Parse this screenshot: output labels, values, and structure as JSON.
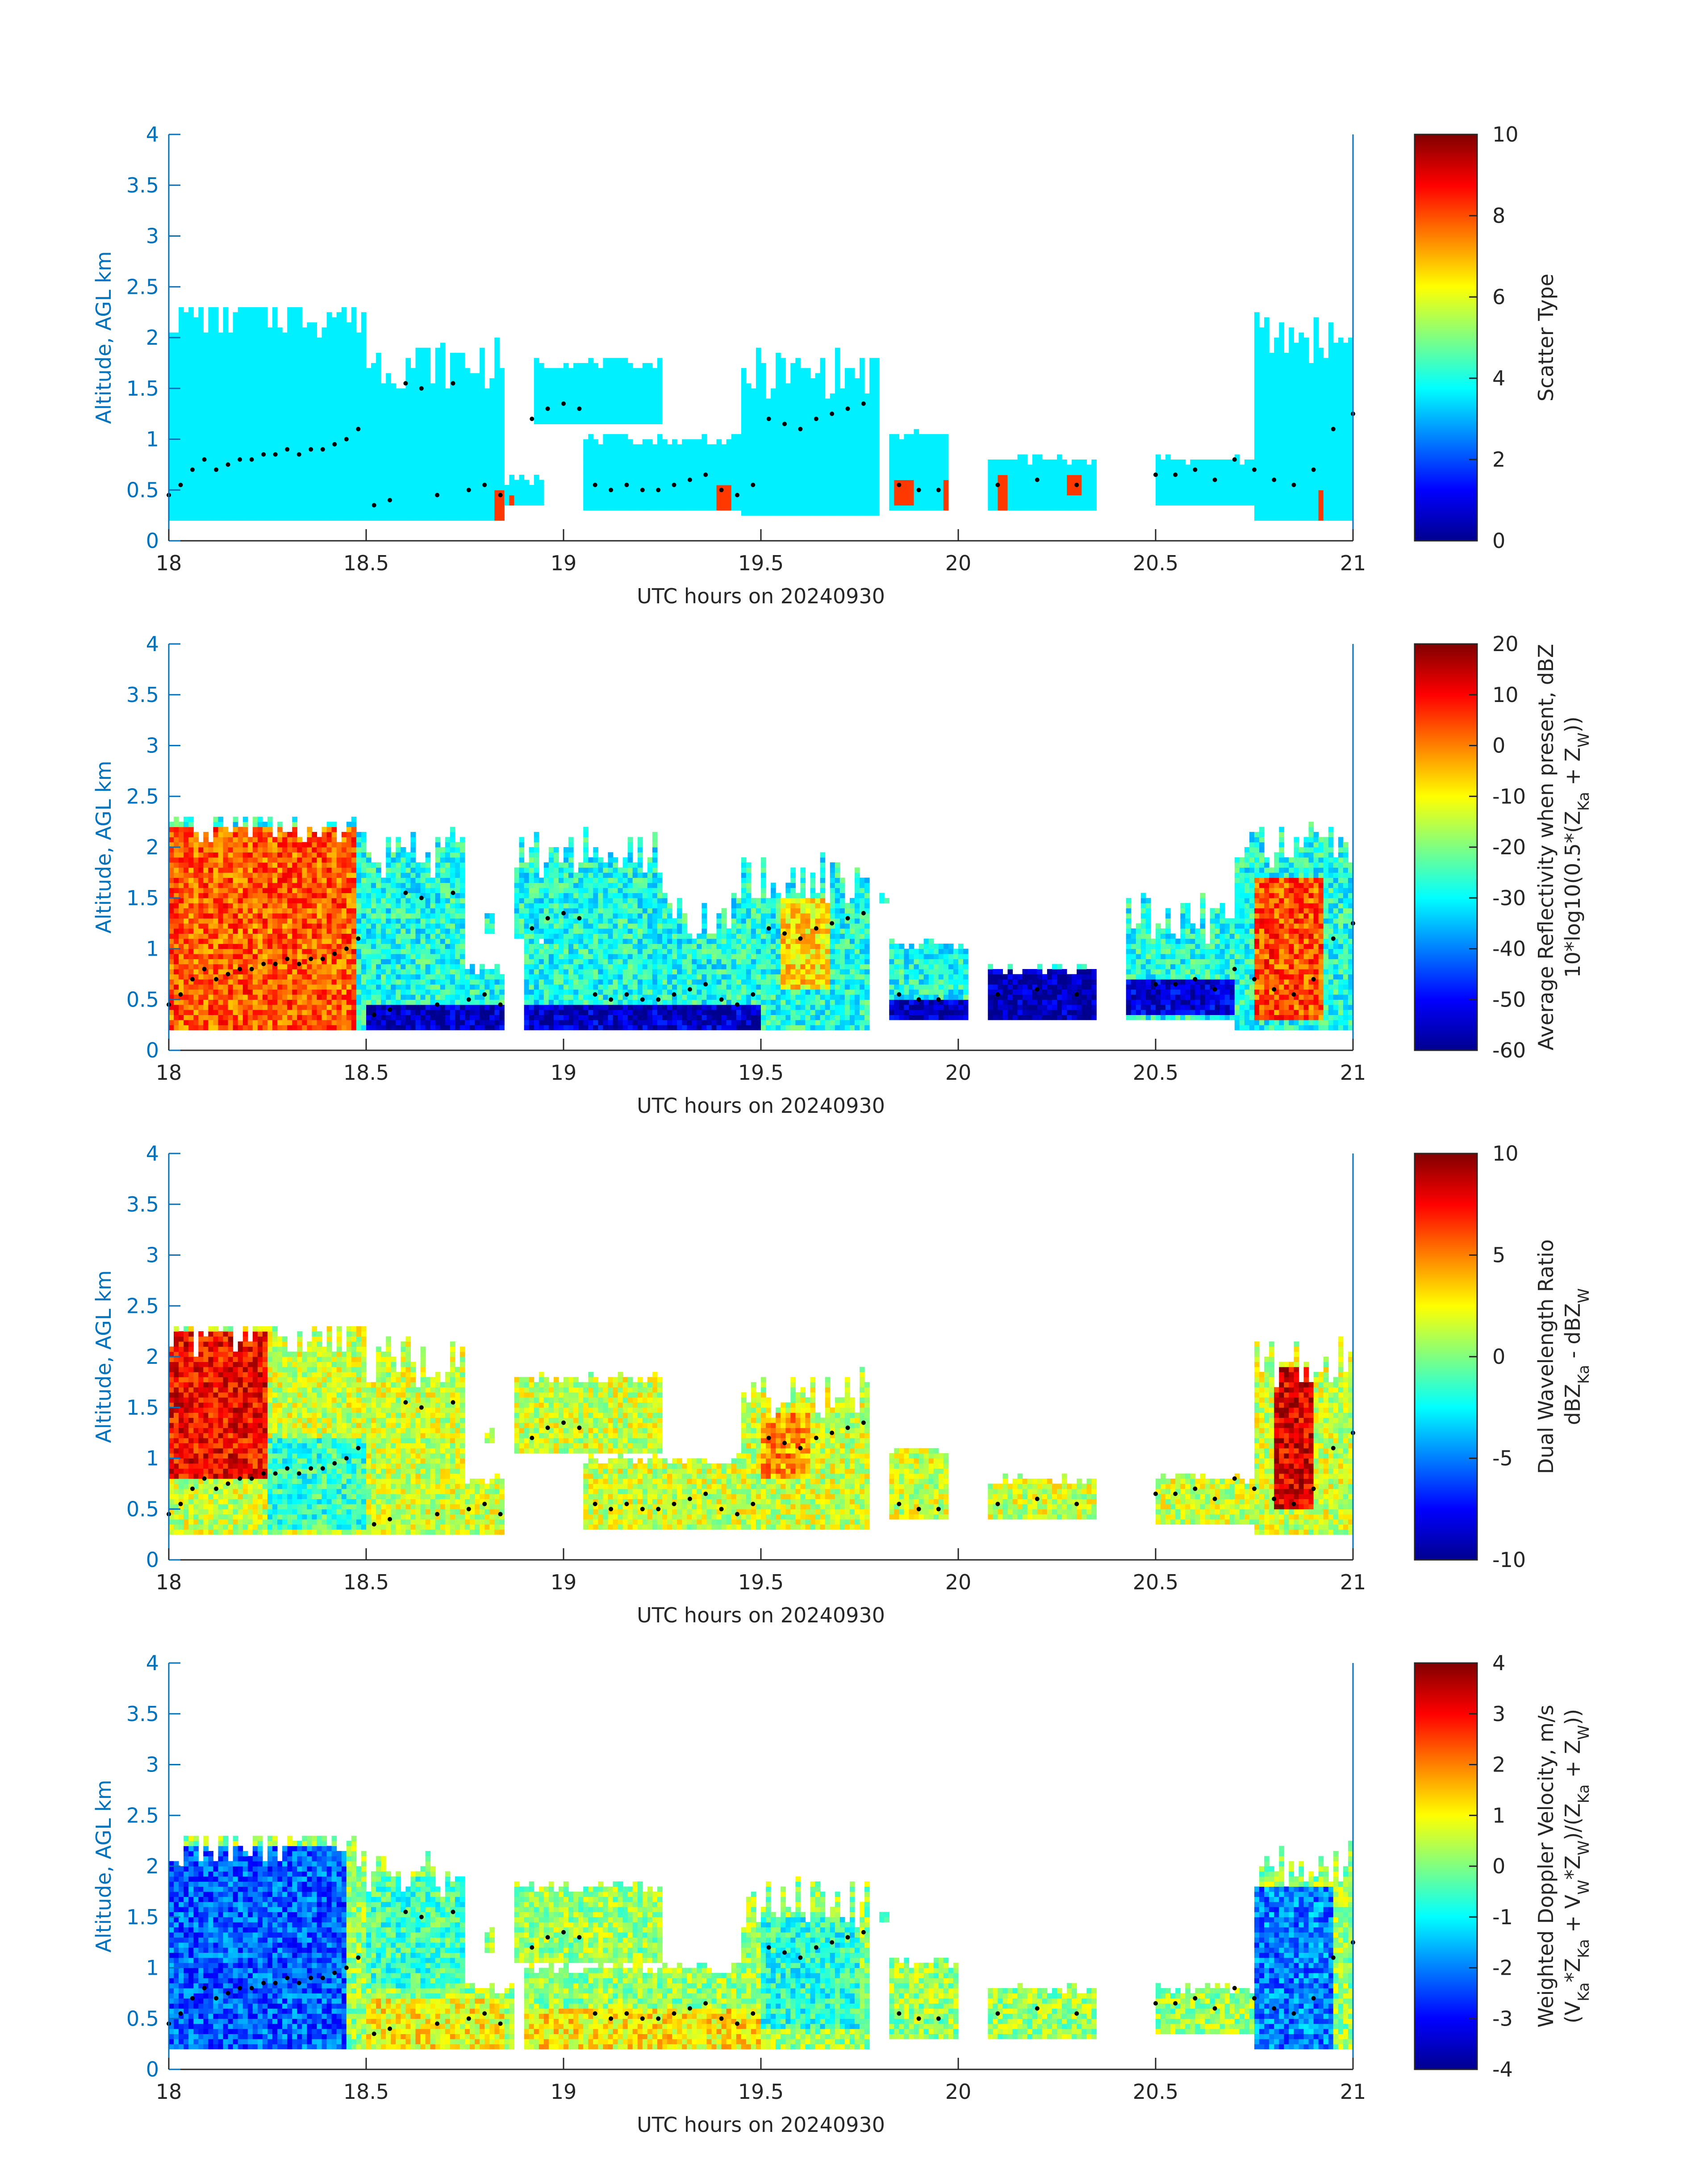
{
  "figure": {
    "xlabel": "UTC hours on 20240930",
    "ylabel": "Altitude, AGL km",
    "xticks": [
      18,
      18.5,
      19,
      19.5,
      20,
      20.5,
      21
    ],
    "yticks": [
      0,
      0.5,
      1,
      1.5,
      2,
      2.5,
      3,
      3.5,
      4
    ],
    "xlim": [
      18,
      21
    ],
    "ylim": [
      0,
      4
    ],
    "colormap": "jet",
    "axis_color": "#0072bd",
    "marker_color": "#000000"
  },
  "chart_data": [
    {
      "type": "heatmap",
      "xlabel": "UTC hours on 20240930",
      "ylabel": "Altitude, AGL km",
      "colorbar_label_lines": [
        "Scatter Type"
      ],
      "clim": [
        0,
        10
      ],
      "colorbar_ticks": [
        0,
        2,
        4,
        6,
        8,
        10
      ],
      "mask_segments": [
        [
          18.0,
          18.5,
          0.2,
          2.25
        ],
        [
          18.5,
          18.85,
          0.2,
          1.75
        ],
        [
          18.85,
          18.95,
          0.35,
          0.6
        ],
        [
          18.93,
          19.25,
          1.15,
          1.75
        ],
        [
          19.05,
          19.45,
          0.3,
          1.0
        ],
        [
          19.45,
          19.8,
          0.25,
          1.65
        ],
        [
          19.82,
          19.98,
          0.3,
          1.05
        ],
        [
          20.07,
          20.35,
          0.3,
          0.8
        ],
        [
          20.5,
          20.75,
          0.35,
          0.8
        ],
        [
          20.75,
          21.0,
          0.2,
          2.0
        ]
      ],
      "fill_value": 3.6,
      "highlights": [
        {
          "x": [
            18.83,
            18.85
          ],
          "y": [
            0.2,
            0.5
          ],
          "value": 8.2
        },
        {
          "x": [
            18.86,
            18.88
          ],
          "y": [
            0.25,
            0.45
          ],
          "value": 8.2
        },
        {
          "x": [
            19.39,
            19.42
          ],
          "y": [
            0.25,
            0.55
          ],
          "value": 8.2
        },
        {
          "x": [
            19.84,
            19.89
          ],
          "y": [
            0.35,
            0.6
          ],
          "value": 8.2
        },
        {
          "x": [
            19.96,
            19.99
          ],
          "y": [
            0.3,
            0.6
          ],
          "value": 8.2
        },
        {
          "x": [
            20.1,
            20.12
          ],
          "y": [
            0.3,
            0.65
          ],
          "value": 8.2
        },
        {
          "x": [
            20.28,
            20.31
          ],
          "y": [
            0.45,
            0.65
          ],
          "value": 8.2
        },
        {
          "x": [
            20.91,
            20.93
          ],
          "y": [
            0.2,
            0.5
          ],
          "value": 8.2
        }
      ],
      "markers": {
        "x": [
          18.0,
          18.03,
          18.06,
          18.09,
          18.12,
          18.15,
          18.18,
          18.21,
          18.24,
          18.27,
          18.3,
          18.33,
          18.36,
          18.39,
          18.42,
          18.45,
          18.48,
          18.52,
          18.56,
          18.6,
          18.64,
          18.68,
          18.72,
          18.76,
          18.8,
          18.84,
          18.92,
          18.96,
          19.0,
          19.04,
          19.08,
          19.12,
          19.16,
          19.2,
          19.24,
          19.28,
          19.32,
          19.36,
          19.4,
          19.44,
          19.48,
          19.52,
          19.56,
          19.6,
          19.64,
          19.68,
          19.72,
          19.76,
          19.85,
          19.9,
          19.95,
          20.1,
          20.2,
          20.3,
          20.5,
          20.55,
          20.6,
          20.65,
          20.7,
          20.75,
          20.8,
          20.85,
          20.9,
          20.95,
          21.0
        ],
        "y": [
          0.45,
          0.55,
          0.7,
          0.8,
          0.7,
          0.75,
          0.8,
          0.8,
          0.85,
          0.85,
          0.9,
          0.85,
          0.9,
          0.9,
          0.95,
          1.0,
          1.1,
          0.35,
          0.4,
          1.55,
          1.5,
          0.45,
          1.55,
          0.5,
          0.55,
          0.45,
          1.2,
          1.3,
          1.35,
          1.3,
          0.55,
          0.5,
          0.55,
          0.5,
          0.5,
          0.55,
          0.6,
          0.65,
          0.5,
          0.45,
          0.55,
          1.2,
          1.15,
          1.1,
          1.2,
          1.25,
          1.3,
          1.35,
          0.55,
          0.5,
          0.5,
          0.55,
          0.6,
          0.55,
          0.65,
          0.65,
          0.7,
          0.6,
          0.8,
          0.7,
          0.6,
          0.55,
          0.7,
          1.1,
          1.25
        ]
      }
    },
    {
      "type": "heatmap",
      "xlabel": "UTC hours on 20240930",
      "ylabel": "Altitude, AGL km",
      "colorbar_label_lines": [
        "Average Reflectivity when present, dBZ",
        "10*log10(0.5*(Z<sub>Ka</sub> + Z<sub>W</sub>))"
      ],
      "clim": [
        -60,
        20
      ],
      "colorbar_ticks": [
        -60,
        -50,
        -40,
        -30,
        -20,
        -10,
        0,
        10,
        20
      ],
      "mask_segments": [
        [
          18.0,
          18.5,
          0.2,
          2.25
        ],
        [
          18.5,
          18.75,
          0.2,
          1.95
        ],
        [
          18.75,
          18.85,
          0.2,
          0.8
        ],
        [
          18.8,
          18.83,
          1.15,
          1.35
        ],
        [
          18.88,
          19.25,
          1.1,
          1.95
        ],
        [
          18.9,
          19.5,
          0.2,
          1.3
        ],
        [
          19.45,
          19.78,
          0.2,
          1.7
        ],
        [
          19.8,
          19.83,
          1.45,
          1.55
        ],
        [
          19.82,
          20.02,
          0.3,
          1.05
        ],
        [
          20.07,
          20.35,
          0.3,
          0.8
        ],
        [
          20.43,
          20.75,
          0.3,
          1.3
        ],
        [
          20.7,
          21.0,
          0.2,
          2.0
        ]
      ],
      "fill_value": -28,
      "highlights": [
        {
          "x": [
            18.0,
            18.48
          ],
          "y": [
            0.2,
            2.2
          ],
          "value": 3
        },
        {
          "x": [
            18.5,
            18.85
          ],
          "y": [
            0.2,
            0.45
          ],
          "value": -56
        },
        {
          "x": [
            18.9,
            19.5
          ],
          "y": [
            0.2,
            0.45
          ],
          "value": -55
        },
        {
          "x": [
            19.55,
            19.68
          ],
          "y": [
            0.6,
            1.5
          ],
          "value": -8
        },
        {
          "x": [
            19.82,
            20.02
          ],
          "y": [
            0.3,
            0.5
          ],
          "value": -56
        },
        {
          "x": [
            20.07,
            20.35
          ],
          "y": [
            0.3,
            0.8
          ],
          "value": -57
        },
        {
          "x": [
            20.43,
            20.7
          ],
          "y": [
            0.35,
            0.7
          ],
          "value": -54
        },
        {
          "x": [
            20.75,
            20.92
          ],
          "y": [
            0.3,
            1.7
          ],
          "value": 4
        }
      ],
      "markers": {
        "x": [
          18.0,
          18.03,
          18.06,
          18.09,
          18.12,
          18.15,
          18.18,
          18.21,
          18.24,
          18.27,
          18.3,
          18.33,
          18.36,
          18.39,
          18.42,
          18.45,
          18.48,
          18.52,
          18.56,
          18.6,
          18.64,
          18.68,
          18.72,
          18.76,
          18.8,
          18.84,
          18.92,
          18.96,
          19.0,
          19.04,
          19.08,
          19.12,
          19.16,
          19.2,
          19.24,
          19.28,
          19.32,
          19.36,
          19.4,
          19.44,
          19.48,
          19.52,
          19.56,
          19.6,
          19.64,
          19.68,
          19.72,
          19.76,
          19.85,
          19.9,
          19.95,
          20.1,
          20.2,
          20.3,
          20.5,
          20.55,
          20.6,
          20.65,
          20.7,
          20.75,
          20.8,
          20.85,
          20.9,
          20.95,
          21.0
        ],
        "y": [
          0.45,
          0.55,
          0.7,
          0.8,
          0.7,
          0.75,
          0.8,
          0.8,
          0.85,
          0.85,
          0.9,
          0.85,
          0.9,
          0.9,
          0.95,
          1.0,
          1.1,
          0.35,
          0.4,
          1.55,
          1.5,
          0.45,
          1.55,
          0.5,
          0.55,
          0.45,
          1.2,
          1.3,
          1.35,
          1.3,
          0.55,
          0.5,
          0.55,
          0.5,
          0.5,
          0.55,
          0.6,
          0.65,
          0.5,
          0.45,
          0.55,
          1.2,
          1.15,
          1.1,
          1.2,
          1.25,
          1.3,
          1.35,
          0.55,
          0.5,
          0.5,
          0.55,
          0.6,
          0.55,
          0.65,
          0.65,
          0.7,
          0.6,
          0.8,
          0.7,
          0.6,
          0.55,
          0.7,
          1.1,
          1.25
        ]
      }
    },
    {
      "type": "heatmap",
      "xlabel": "UTC hours on 20240930",
      "ylabel": "Altitude, AGL km",
      "colorbar_label_lines": [
        "Dual Wavelength Ratio",
        "dBZ<sub>Ka</sub> - dBZ<sub>W</sub>"
      ],
      "clim": [
        -10,
        10
      ],
      "colorbar_ticks": [
        -10,
        -5,
        0,
        5,
        10
      ],
      "mask_segments": [
        [
          18.0,
          18.5,
          0.25,
          2.25
        ],
        [
          18.5,
          18.75,
          0.25,
          1.95
        ],
        [
          18.72,
          18.85,
          0.25,
          0.8
        ],
        [
          18.8,
          18.83,
          1.15,
          1.3
        ],
        [
          18.88,
          19.25,
          1.05,
          1.8
        ],
        [
          19.05,
          19.45,
          0.3,
          1.0
        ],
        [
          19.45,
          19.78,
          0.3,
          1.65
        ],
        [
          19.82,
          19.98,
          0.4,
          1.1
        ],
        [
          20.07,
          20.35,
          0.4,
          0.8
        ],
        [
          20.5,
          20.75,
          0.35,
          0.8
        ],
        [
          20.75,
          21.0,
          0.25,
          1.95
        ]
      ],
      "fill_value": 1.5,
      "highlights": [
        {
          "x": [
            18.0,
            18.25
          ],
          "y": [
            0.8,
            2.25
          ],
          "value": 7.5
        },
        {
          "x": [
            18.25,
            18.5
          ],
          "y": [
            0.3,
            1.2
          ],
          "value": -1.5
        },
        {
          "x": [
            19.5,
            19.62
          ],
          "y": [
            0.8,
            1.45
          ],
          "value": 4.5
        },
        {
          "x": [
            20.8,
            20.9
          ],
          "y": [
            0.5,
            1.9
          ],
          "value": 8
        }
      ],
      "markers": {
        "x": [
          18.0,
          18.03,
          18.06,
          18.09,
          18.12,
          18.15,
          18.18,
          18.21,
          18.24,
          18.27,
          18.3,
          18.33,
          18.36,
          18.39,
          18.42,
          18.45,
          18.48,
          18.52,
          18.56,
          18.6,
          18.64,
          18.68,
          18.72,
          18.76,
          18.8,
          18.84,
          18.92,
          18.96,
          19.0,
          19.04,
          19.08,
          19.12,
          19.16,
          19.2,
          19.24,
          19.28,
          19.32,
          19.36,
          19.4,
          19.44,
          19.48,
          19.52,
          19.56,
          19.6,
          19.64,
          19.68,
          19.72,
          19.76,
          19.85,
          19.9,
          19.95,
          20.1,
          20.2,
          20.3,
          20.5,
          20.55,
          20.6,
          20.65,
          20.7,
          20.75,
          20.8,
          20.85,
          20.9,
          20.95,
          21.0
        ],
        "y": [
          0.45,
          0.55,
          0.7,
          0.8,
          0.7,
          0.75,
          0.8,
          0.8,
          0.85,
          0.85,
          0.9,
          0.85,
          0.9,
          0.9,
          0.95,
          1.0,
          1.1,
          0.35,
          0.4,
          1.55,
          1.5,
          0.45,
          1.55,
          0.5,
          0.55,
          0.45,
          1.2,
          1.3,
          1.35,
          1.3,
          0.55,
          0.5,
          0.55,
          0.5,
          0.5,
          0.55,
          0.6,
          0.65,
          0.5,
          0.45,
          0.55,
          1.2,
          1.15,
          1.1,
          1.2,
          1.25,
          1.3,
          1.35,
          0.55,
          0.5,
          0.5,
          0.55,
          0.6,
          0.55,
          0.65,
          0.65,
          0.7,
          0.6,
          0.8,
          0.7,
          0.6,
          0.55,
          0.7,
          1.1,
          1.25
        ]
      }
    },
    {
      "type": "heatmap",
      "xlabel": "UTC hours on 20240930",
      "ylabel": "Altitude, AGL km",
      "colorbar_label_lines": [
        "Weighted Doppler Velocity, m/s",
        "(V<sub>Ka</sub>*Z<sub>Ka</sub> + V<sub>W</sub>*Z<sub>W</sub>)/(Z<sub>Ka</sub> + Z<sub>W</sub>))"
      ],
      "clim": [
        -4,
        4
      ],
      "colorbar_ticks": [
        -4,
        -3,
        -2,
        -1,
        0,
        1,
        2,
        3,
        4
      ],
      "mask_segments": [
        [
          18.0,
          18.5,
          0.2,
          2.25
        ],
        [
          18.5,
          18.75,
          0.2,
          1.95
        ],
        [
          18.72,
          18.88,
          0.2,
          0.8
        ],
        [
          18.8,
          18.83,
          1.15,
          1.35
        ],
        [
          18.88,
          19.25,
          1.05,
          1.8
        ],
        [
          18.9,
          19.5,
          0.2,
          1.0
        ],
        [
          19.45,
          19.78,
          0.2,
          1.65
        ],
        [
          19.8,
          19.83,
          1.45,
          1.55
        ],
        [
          19.82,
          20.0,
          0.3,
          1.05
        ],
        [
          20.07,
          20.35,
          0.3,
          0.8
        ],
        [
          20.5,
          20.75,
          0.35,
          0.8
        ],
        [
          20.75,
          21.0,
          0.2,
          2.0
        ]
      ],
      "fill_value": 0.2,
      "highlights": [
        {
          "x": [
            18.0,
            18.45
          ],
          "y": [
            0.2,
            2.2
          ],
          "value": -2.3
        },
        {
          "x": [
            18.5,
            18.75
          ],
          "y": [
            0.8,
            1.9
          ],
          "value": -0.5
        },
        {
          "x": [
            18.5,
            18.85
          ],
          "y": [
            0.2,
            0.7
          ],
          "value": 1.0
        },
        {
          "x": [
            18.9,
            19.5
          ],
          "y": [
            0.2,
            0.6
          ],
          "value": 1.1
        },
        {
          "x": [
            19.5,
            19.75
          ],
          "y": [
            0.4,
            1.5
          ],
          "value": -0.7
        },
        {
          "x": [
            20.75,
            20.95
          ],
          "y": [
            0.2,
            1.8
          ],
          "value": -2.0
        }
      ],
      "markers": {
        "x": [
          18.0,
          18.03,
          18.06,
          18.09,
          18.12,
          18.15,
          18.18,
          18.21,
          18.24,
          18.27,
          18.3,
          18.33,
          18.36,
          18.39,
          18.42,
          18.45,
          18.48,
          18.52,
          18.56,
          18.6,
          18.64,
          18.68,
          18.72,
          18.76,
          18.8,
          18.84,
          18.92,
          18.96,
          19.0,
          19.04,
          19.08,
          19.12,
          19.16,
          19.2,
          19.24,
          19.28,
          19.32,
          19.36,
          19.4,
          19.44,
          19.48,
          19.52,
          19.56,
          19.6,
          19.64,
          19.68,
          19.72,
          19.76,
          19.85,
          19.9,
          19.95,
          20.1,
          20.2,
          20.3,
          20.5,
          20.55,
          20.6,
          20.65,
          20.7,
          20.75,
          20.8,
          20.85,
          20.9,
          20.95,
          21.0
        ],
        "y": [
          0.45,
          0.55,
          0.7,
          0.8,
          0.7,
          0.75,
          0.8,
          0.8,
          0.85,
          0.85,
          0.9,
          0.85,
          0.9,
          0.9,
          0.95,
          1.0,
          1.1,
          0.35,
          0.4,
          1.55,
          1.5,
          0.45,
          1.55,
          0.5,
          0.55,
          0.45,
          1.2,
          1.3,
          1.35,
          1.3,
          0.55,
          0.5,
          0.55,
          0.5,
          0.5,
          0.55,
          0.6,
          0.65,
          0.5,
          0.45,
          0.55,
          1.2,
          1.15,
          1.1,
          1.2,
          1.25,
          1.3,
          1.35,
          0.55,
          0.5,
          0.5,
          0.55,
          0.6,
          0.55,
          0.65,
          0.65,
          0.7,
          0.6,
          0.8,
          0.7,
          0.6,
          0.55,
          0.7,
          1.1,
          1.25
        ]
      }
    }
  ]
}
